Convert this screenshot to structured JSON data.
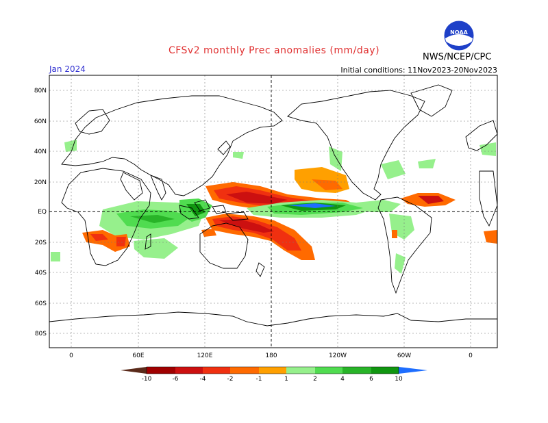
{
  "header": {
    "title": "CFSv2 monthly Prec anomalies (mm/day)",
    "month": "Jan 2024",
    "initial_conditions": "Initial conditions: 11Nov2023-20Nov2023",
    "agency": "NWS/NCEP/CPC",
    "logo_text": "NOAA"
  },
  "colors": {
    "title": "#e03030",
    "month": "#3030d0",
    "dry_strong": "#a00000",
    "wet_strong": "#1e6eff"
  },
  "axes": {
    "lat_labels": [
      "80N",
      "60N",
      "40N",
      "20N",
      "EQ",
      "20S",
      "40S",
      "60S",
      "80S"
    ],
    "lon_labels": [
      "0",
      "60E",
      "120E",
      "180",
      "120W",
      "60W",
      "0"
    ]
  },
  "colorbar": {
    "labels": [
      "-10",
      "-6",
      "-4",
      "-2",
      "-1",
      "1",
      "2",
      "4",
      "6",
      "10"
    ],
    "colors": [
      "#5a2a1a",
      "#a00000",
      "#cc1010",
      "#f03010",
      "#ff6a00",
      "#ffa000",
      "#ffffff",
      "#96f08c",
      "#50dc50",
      "#28b428",
      "#109610",
      "#1e6eff"
    ]
  }
}
